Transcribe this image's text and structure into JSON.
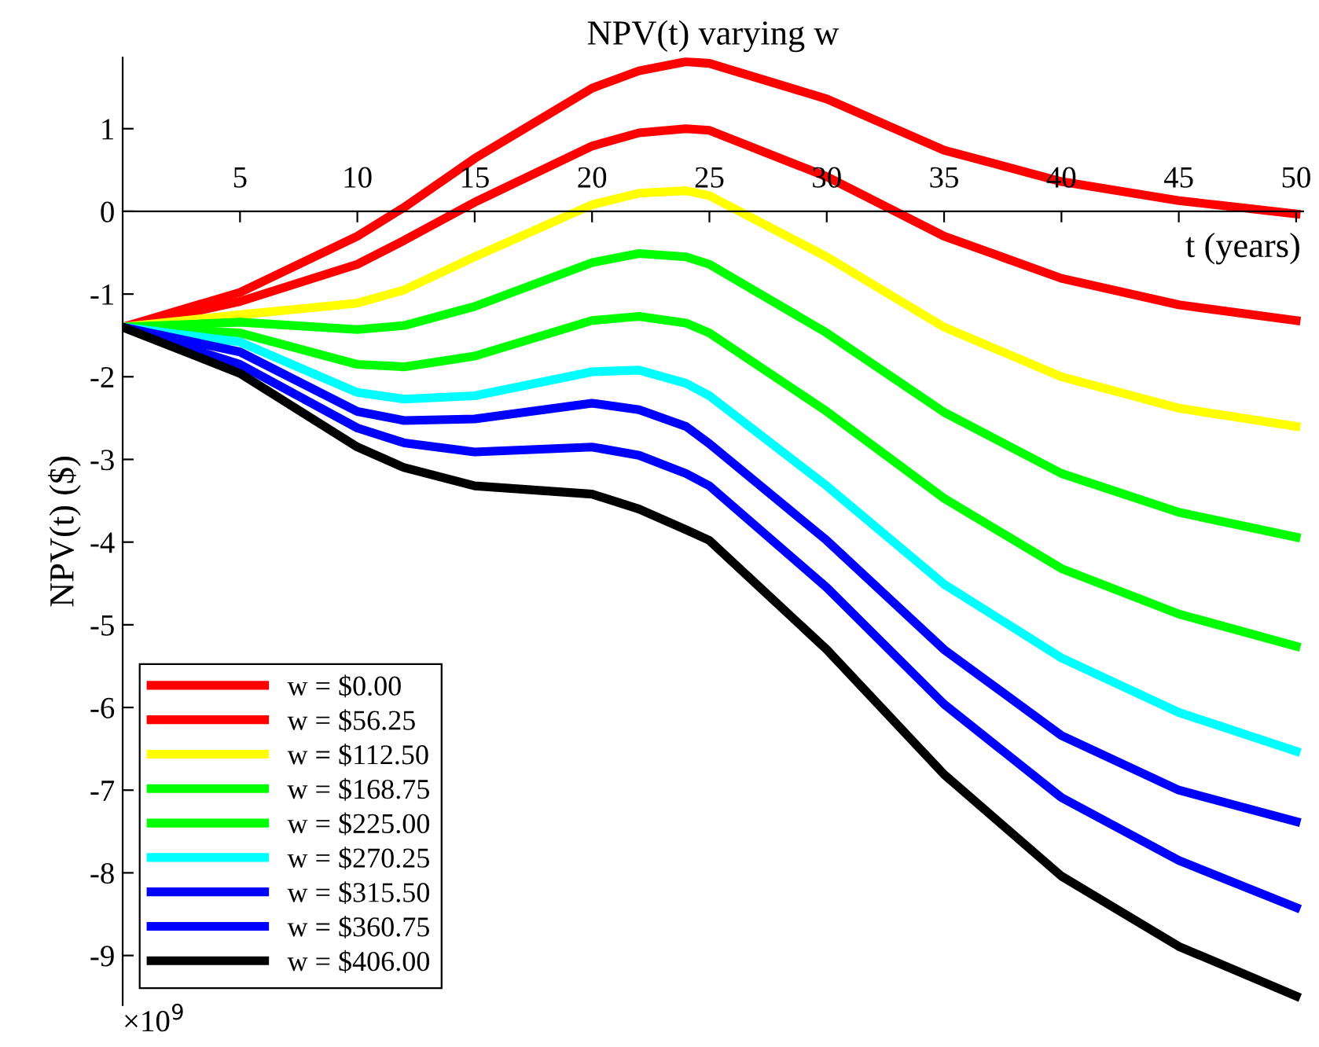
{
  "chart_data": {
    "type": "line",
    "title": "NPV(t) varying w",
    "xlabel": "t (years)",
    "ylabel": "NPV(t) ($)",
    "annotations": [
      "×10$^{9}$"
    ],
    "x": [
      0,
      5,
      10,
      12,
      15,
      20,
      22,
      24,
      25,
      30,
      35,
      40,
      45,
      50
    ],
    "xlim": [
      0,
      50.3
    ],
    "xticks": [
      5,
      10,
      15,
      20,
      25,
      30,
      35,
      40,
      45,
      50
    ],
    "ylim": [
      -9.6,
      1.86
    ],
    "yticks": [
      -9,
      -8,
      -7,
      -6,
      -5,
      -4,
      -3,
      -2,
      -1,
      0,
      1
    ],
    "grid": false,
    "legend": "bottom left",
    "marker": "none",
    "line_style": "solid",
    "series": [
      {
        "name": "w = $0.00",
        "color": "#ff0000",
        "values": [
          -1.4,
          -0.98,
          -0.3,
          0.05,
          0.64,
          1.49,
          1.7,
          1.81,
          1.79,
          1.36,
          0.74,
          0.36,
          0.13,
          -0.03
        ]
      },
      {
        "name": "w = $56.25",
        "color": "#ff0000",
        "values": [
          -1.4,
          -1.09,
          -0.64,
          -0.35,
          0.11,
          0.79,
          0.95,
          1.0,
          0.98,
          0.42,
          -0.3,
          -0.81,
          -1.13,
          -1.32
        ]
      },
      {
        "name": "w = $112.50",
        "color": "#ffff00",
        "values": [
          -1.4,
          -1.25,
          -1.11,
          -0.95,
          -0.55,
          0.08,
          0.22,
          0.25,
          0.19,
          -0.55,
          -1.4,
          -2.0,
          -2.38,
          -2.6
        ]
      },
      {
        "name": "w = $168.75",
        "color": "#00ff00",
        "values": [
          -1.4,
          -1.34,
          -1.43,
          -1.38,
          -1.15,
          -0.62,
          -0.51,
          -0.55,
          -0.64,
          -1.47,
          -2.43,
          -3.17,
          -3.64,
          -3.94
        ]
      },
      {
        "name": "w = $225.00",
        "color": "#00ff00",
        "values": [
          -1.4,
          -1.47,
          -1.85,
          -1.88,
          -1.75,
          -1.32,
          -1.27,
          -1.35,
          -1.47,
          -2.42,
          -3.47,
          -4.32,
          -4.87,
          -5.26
        ]
      },
      {
        "name": "w = $270.25",
        "color": "#00ffff",
        "values": [
          -1.4,
          -1.58,
          -2.19,
          -2.27,
          -2.23,
          -1.94,
          -1.92,
          -2.08,
          -2.23,
          -3.32,
          -4.51,
          -5.4,
          -6.06,
          -6.53
        ]
      },
      {
        "name": "w = $315.50",
        "color": "#0000ff",
        "values": [
          -1.4,
          -1.7,
          -2.42,
          -2.53,
          -2.51,
          -2.32,
          -2.4,
          -2.6,
          -2.81,
          -3.98,
          -5.3,
          -6.34,
          -7.0,
          -7.38
        ]
      },
      {
        "name": "w = $360.75",
        "color": "#0000ff",
        "values": [
          -1.4,
          -1.85,
          -2.62,
          -2.8,
          -2.91,
          -2.85,
          -2.95,
          -3.17,
          -3.32,
          -4.55,
          -5.96,
          -7.09,
          -7.85,
          -8.42
        ]
      },
      {
        "name": "w = $406.00",
        "color": "#000000",
        "values": [
          -1.4,
          -1.96,
          -2.85,
          -3.1,
          -3.32,
          -3.42,
          -3.6,
          -3.85,
          -3.98,
          -5.3,
          -6.81,
          -8.04,
          -8.89,
          -9.49
        ]
      }
    ]
  }
}
